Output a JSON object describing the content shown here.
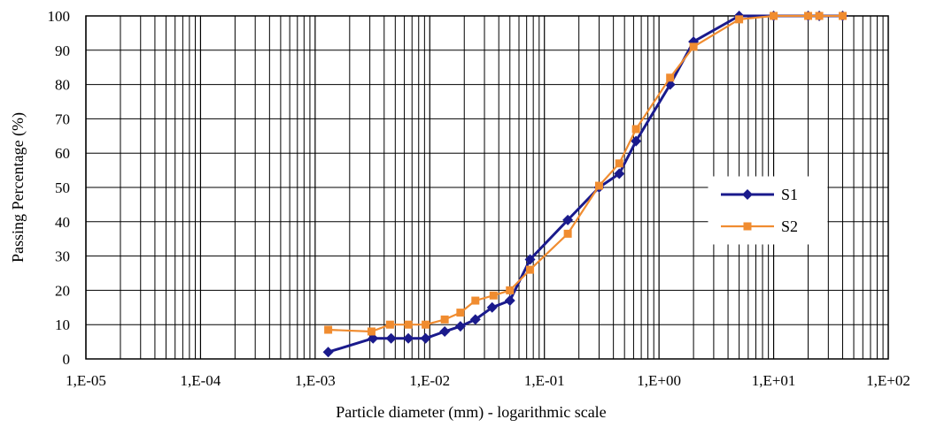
{
  "chart_data": {
    "type": "line",
    "xlabel": "Particle diameter (mm) - logarithmic scale",
    "ylabel": "Passing Percentage (%)",
    "x_scale": "log",
    "xlim": [
      1e-05,
      100
    ],
    "ylim": [
      0,
      100
    ],
    "x_ticks": [
      {
        "value": 1e-05,
        "label": "1,E-05"
      },
      {
        "value": 0.0001,
        "label": "1,E-04"
      },
      {
        "value": 0.001,
        "label": "1,E-03"
      },
      {
        "value": 0.01,
        "label": "1,E-02"
      },
      {
        "value": 0.1,
        "label": "1,E-01"
      },
      {
        "value": 1,
        "label": "1,E+00"
      },
      {
        "value": 10,
        "label": "1,E+01"
      },
      {
        "value": 100,
        "label": "1,E+02"
      }
    ],
    "y_ticks": [
      0,
      10,
      20,
      30,
      40,
      50,
      60,
      70,
      80,
      90,
      100
    ],
    "grid": true,
    "legend_position": "right-middle",
    "series": [
      {
        "name": "S1",
        "color": "#1a1a8c",
        "marker": "diamond",
        "x": [
          0.0013,
          0.0032,
          0.0046,
          0.0065,
          0.0092,
          0.0135,
          0.0185,
          0.025,
          0.035,
          0.05,
          0.075,
          0.16,
          0.3,
          0.45,
          0.63,
          1.25,
          2.0,
          5.0,
          10,
          20,
          25,
          40
        ],
        "y": [
          2,
          6,
          6,
          6,
          6,
          8,
          9.5,
          11.5,
          15,
          17,
          29,
          40.5,
          50,
          54,
          63.5,
          80,
          92.5,
          100,
          100,
          100,
          100,
          100
        ]
      },
      {
        "name": "S2",
        "color": "#f08c30",
        "marker": "square",
        "x": [
          0.0013,
          0.0031,
          0.0045,
          0.0065,
          0.0092,
          0.0135,
          0.0185,
          0.025,
          0.036,
          0.05,
          0.075,
          0.16,
          0.3,
          0.45,
          0.63,
          1.25,
          2.0,
          5.0,
          10,
          20,
          25,
          40
        ],
        "y": [
          8.5,
          8,
          10,
          10,
          10,
          11.5,
          13.5,
          17,
          18.5,
          20,
          26,
          36.5,
          50.5,
          57,
          67,
          82,
          91,
          99,
          100,
          100,
          100,
          100
        ]
      }
    ]
  }
}
